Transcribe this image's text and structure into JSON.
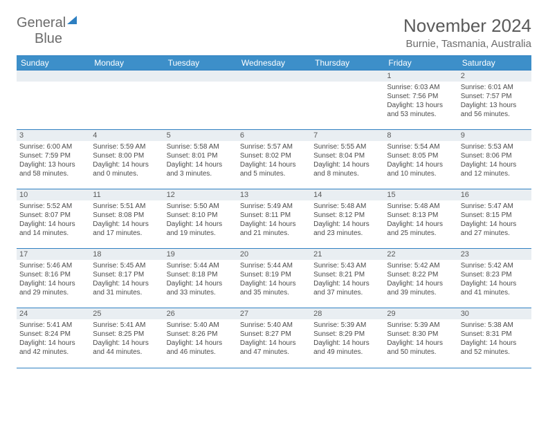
{
  "branding": {
    "logo_gray": "General",
    "logo_blue": "Blue"
  },
  "header": {
    "month_title": "November 2024",
    "location": "Burnie, Tasmania, Australia"
  },
  "colors": {
    "header_bg": "#3d8fc9",
    "rule": "#2d7fc1",
    "daynum_bg": "#e9eef2",
    "text_gray": "#5a5a5a"
  },
  "weekdays": [
    "Sunday",
    "Monday",
    "Tuesday",
    "Wednesday",
    "Thursday",
    "Friday",
    "Saturday"
  ],
  "weeks": [
    [
      null,
      null,
      null,
      null,
      null,
      {
        "n": "1",
        "sr": "Sunrise: 6:03 AM",
        "ss": "Sunset: 7:56 PM",
        "d1": "Daylight: 13 hours",
        "d2": "and 53 minutes."
      },
      {
        "n": "2",
        "sr": "Sunrise: 6:01 AM",
        "ss": "Sunset: 7:57 PM",
        "d1": "Daylight: 13 hours",
        "d2": "and 56 minutes."
      }
    ],
    [
      {
        "n": "3",
        "sr": "Sunrise: 6:00 AM",
        "ss": "Sunset: 7:59 PM",
        "d1": "Daylight: 13 hours",
        "d2": "and 58 minutes."
      },
      {
        "n": "4",
        "sr": "Sunrise: 5:59 AM",
        "ss": "Sunset: 8:00 PM",
        "d1": "Daylight: 14 hours",
        "d2": "and 0 minutes."
      },
      {
        "n": "5",
        "sr": "Sunrise: 5:58 AM",
        "ss": "Sunset: 8:01 PM",
        "d1": "Daylight: 14 hours",
        "d2": "and 3 minutes."
      },
      {
        "n": "6",
        "sr": "Sunrise: 5:57 AM",
        "ss": "Sunset: 8:02 PM",
        "d1": "Daylight: 14 hours",
        "d2": "and 5 minutes."
      },
      {
        "n": "7",
        "sr": "Sunrise: 5:55 AM",
        "ss": "Sunset: 8:04 PM",
        "d1": "Daylight: 14 hours",
        "d2": "and 8 minutes."
      },
      {
        "n": "8",
        "sr": "Sunrise: 5:54 AM",
        "ss": "Sunset: 8:05 PM",
        "d1": "Daylight: 14 hours",
        "d2": "and 10 minutes."
      },
      {
        "n": "9",
        "sr": "Sunrise: 5:53 AM",
        "ss": "Sunset: 8:06 PM",
        "d1": "Daylight: 14 hours",
        "d2": "and 12 minutes."
      }
    ],
    [
      {
        "n": "10",
        "sr": "Sunrise: 5:52 AM",
        "ss": "Sunset: 8:07 PM",
        "d1": "Daylight: 14 hours",
        "d2": "and 14 minutes."
      },
      {
        "n": "11",
        "sr": "Sunrise: 5:51 AM",
        "ss": "Sunset: 8:08 PM",
        "d1": "Daylight: 14 hours",
        "d2": "and 17 minutes."
      },
      {
        "n": "12",
        "sr": "Sunrise: 5:50 AM",
        "ss": "Sunset: 8:10 PM",
        "d1": "Daylight: 14 hours",
        "d2": "and 19 minutes."
      },
      {
        "n": "13",
        "sr": "Sunrise: 5:49 AM",
        "ss": "Sunset: 8:11 PM",
        "d1": "Daylight: 14 hours",
        "d2": "and 21 minutes."
      },
      {
        "n": "14",
        "sr": "Sunrise: 5:48 AM",
        "ss": "Sunset: 8:12 PM",
        "d1": "Daylight: 14 hours",
        "d2": "and 23 minutes."
      },
      {
        "n": "15",
        "sr": "Sunrise: 5:48 AM",
        "ss": "Sunset: 8:13 PM",
        "d1": "Daylight: 14 hours",
        "d2": "and 25 minutes."
      },
      {
        "n": "16",
        "sr": "Sunrise: 5:47 AM",
        "ss": "Sunset: 8:15 PM",
        "d1": "Daylight: 14 hours",
        "d2": "and 27 minutes."
      }
    ],
    [
      {
        "n": "17",
        "sr": "Sunrise: 5:46 AM",
        "ss": "Sunset: 8:16 PM",
        "d1": "Daylight: 14 hours",
        "d2": "and 29 minutes."
      },
      {
        "n": "18",
        "sr": "Sunrise: 5:45 AM",
        "ss": "Sunset: 8:17 PM",
        "d1": "Daylight: 14 hours",
        "d2": "and 31 minutes."
      },
      {
        "n": "19",
        "sr": "Sunrise: 5:44 AM",
        "ss": "Sunset: 8:18 PM",
        "d1": "Daylight: 14 hours",
        "d2": "and 33 minutes."
      },
      {
        "n": "20",
        "sr": "Sunrise: 5:44 AM",
        "ss": "Sunset: 8:19 PM",
        "d1": "Daylight: 14 hours",
        "d2": "and 35 minutes."
      },
      {
        "n": "21",
        "sr": "Sunrise: 5:43 AM",
        "ss": "Sunset: 8:21 PM",
        "d1": "Daylight: 14 hours",
        "d2": "and 37 minutes."
      },
      {
        "n": "22",
        "sr": "Sunrise: 5:42 AM",
        "ss": "Sunset: 8:22 PM",
        "d1": "Daylight: 14 hours",
        "d2": "and 39 minutes."
      },
      {
        "n": "23",
        "sr": "Sunrise: 5:42 AM",
        "ss": "Sunset: 8:23 PM",
        "d1": "Daylight: 14 hours",
        "d2": "and 41 minutes."
      }
    ],
    [
      {
        "n": "24",
        "sr": "Sunrise: 5:41 AM",
        "ss": "Sunset: 8:24 PM",
        "d1": "Daylight: 14 hours",
        "d2": "and 42 minutes."
      },
      {
        "n": "25",
        "sr": "Sunrise: 5:41 AM",
        "ss": "Sunset: 8:25 PM",
        "d1": "Daylight: 14 hours",
        "d2": "and 44 minutes."
      },
      {
        "n": "26",
        "sr": "Sunrise: 5:40 AM",
        "ss": "Sunset: 8:26 PM",
        "d1": "Daylight: 14 hours",
        "d2": "and 46 minutes."
      },
      {
        "n": "27",
        "sr": "Sunrise: 5:40 AM",
        "ss": "Sunset: 8:27 PM",
        "d1": "Daylight: 14 hours",
        "d2": "and 47 minutes."
      },
      {
        "n": "28",
        "sr": "Sunrise: 5:39 AM",
        "ss": "Sunset: 8:29 PM",
        "d1": "Daylight: 14 hours",
        "d2": "and 49 minutes."
      },
      {
        "n": "29",
        "sr": "Sunrise: 5:39 AM",
        "ss": "Sunset: 8:30 PM",
        "d1": "Daylight: 14 hours",
        "d2": "and 50 minutes."
      },
      {
        "n": "30",
        "sr": "Sunrise: 5:38 AM",
        "ss": "Sunset: 8:31 PM",
        "d1": "Daylight: 14 hours",
        "d2": "and 52 minutes."
      }
    ]
  ]
}
